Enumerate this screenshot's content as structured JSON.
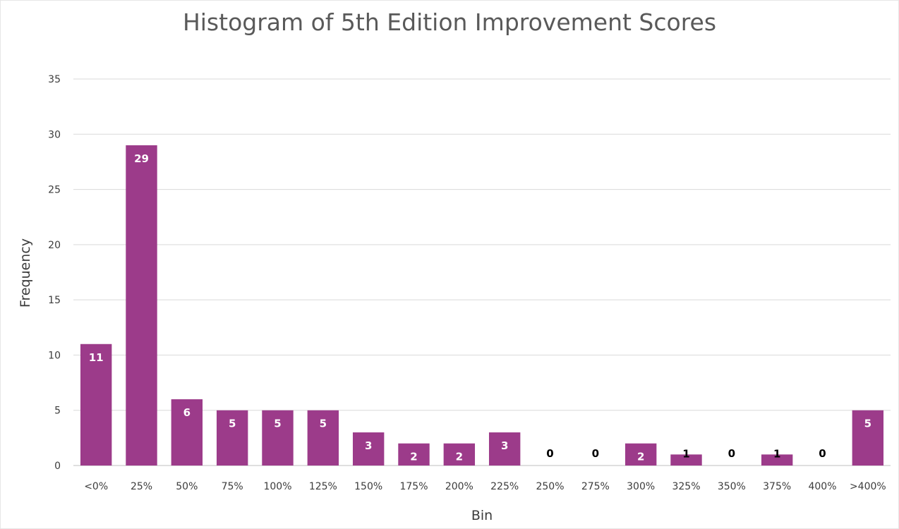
{
  "chart_data": {
    "type": "bar",
    "title": "Histogram of 5th Edition Improvement Scores",
    "xlabel": "Bin",
    "ylabel": "Frequency",
    "categories": [
      "<0%",
      "25%",
      "50%",
      "75%",
      "100%",
      "125%",
      "150%",
      "175%",
      "200%",
      "225%",
      "250%",
      "275%",
      "300%",
      "325%",
      "350%",
      "375%",
      "400%",
      ">400%"
    ],
    "values": [
      11,
      29,
      6,
      5,
      5,
      5,
      3,
      2,
      2,
      3,
      0,
      0,
      2,
      1,
      0,
      1,
      0,
      5
    ],
    "ylim": [
      0,
      35
    ],
    "yticks": [
      0,
      5,
      10,
      15,
      20,
      25,
      30,
      35
    ],
    "grid": true,
    "legend": "none",
    "colors": {
      "bar": "#9c3b8a",
      "grid": "#d9d9d9",
      "label_inside": "#ffffff",
      "label_outside": "#000000"
    }
  }
}
